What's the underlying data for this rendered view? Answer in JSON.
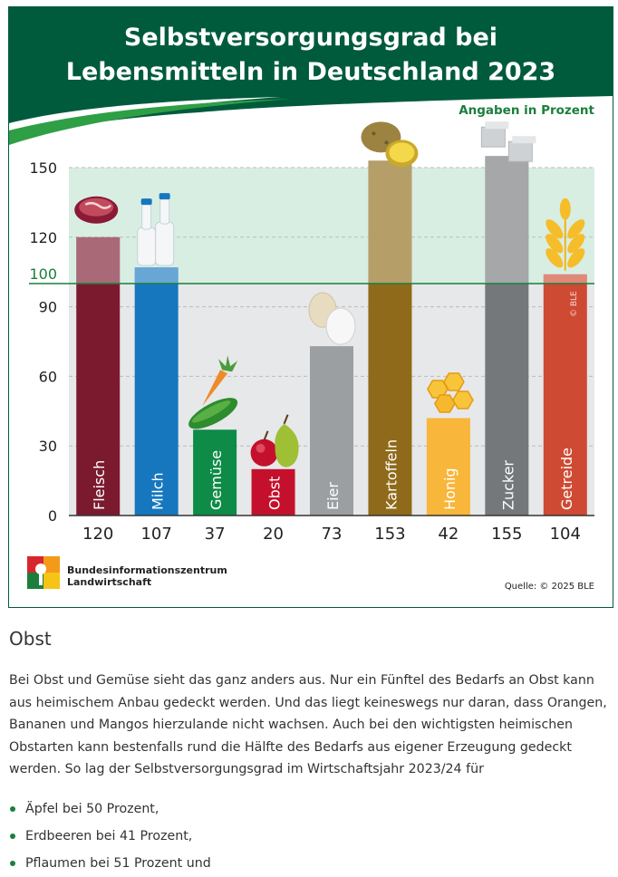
{
  "chart_data": {
    "type": "bar",
    "title_line1": "Selbstversorgungsgrad bei",
    "title_line2": "Lebensmitteln in Deutschland 2023",
    "unit_note": "Angaben in Prozent",
    "categories": [
      "Fleisch",
      "Milch",
      "Gemüse",
      "Obst",
      "Eier",
      "Kartoffeln",
      "Honig",
      "Zucker",
      "Getreide"
    ],
    "values": [
      120,
      107,
      37,
      20,
      73,
      153,
      42,
      155,
      104
    ],
    "value_labels": [
      "120",
      "107",
      "37",
      "20",
      "73",
      "153",
      "42",
      "155",
      "104"
    ],
    "bar_colors": [
      "#7b1a2f",
      "#1677bf",
      "#0d8b47",
      "#c4102c",
      "#9c9fa2",
      "#8f6a1a",
      "#f8b63a",
      "#75787b",
      "#cf4a32"
    ],
    "icons": [
      "meat-icon",
      "milk-bottles-icon",
      "vegetables-icon",
      "fruit-icon",
      "eggs-icon",
      "potatoes-icon",
      "honey-icon",
      "sugar-cubes-icon",
      "grain-icon"
    ],
    "y_ticks": [
      "150",
      "120",
      "90",
      "60",
      "30",
      "0"
    ],
    "y_tick_values": [
      150,
      120,
      90,
      60,
      30,
      0
    ],
    "reference_line": 100,
    "reference_label": "100",
    "ylim": [
      0,
      150
    ],
    "grid": true,
    "copyright_vertical": "© BLE",
    "logo_line1": "Bundesinformationszentrum",
    "logo_line2": "Landwirtschaft",
    "source": "Quelle: © 2025 BLE",
    "colors": {
      "header_green": "#005b3c",
      "line_green": "#1a7f3c",
      "highlight_band": "#d8eee3",
      "plot_background": "#e6e8e9"
    }
  },
  "article": {
    "heading": "Obst",
    "paragraph": "Bei Obst und Gemüse sieht das ganz anders aus. Nur ein Fünftel des Bedarfs an Obst kann aus heimischem Anbau gedeckt werden. Und das liegt keineswegs nur daran, dass Orangen, Bananen und Mangos hierzulande nicht wachsen. Auch bei den wichtigsten heimischen Obstarten kann bestenfalls rund die Hälfte des Bedarfs aus eigener Erzeugung gedeckt werden. So lag der Selbstversorgungsgrad im Wirtschaftsjahr 2023/24 für",
    "bullets": [
      "Äpfel bei 50 Prozent,",
      "Erdbeeren bei 41 Prozent,",
      "Pflaumen bei 51 Prozent und"
    ]
  }
}
